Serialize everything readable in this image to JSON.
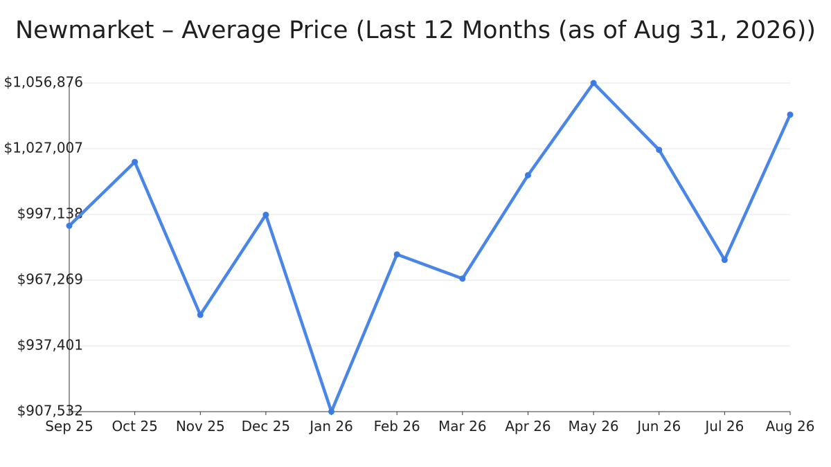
{
  "chart_data": {
    "type": "line",
    "title": "Newmarket – Average Price (Last 12 Months (as of Aug 31, 2026))",
    "xlabel": "",
    "ylabel": "",
    "categories": [
      "Sep 25",
      "Oct 25",
      "Nov 25",
      "Dec 25",
      "Jan 26",
      "Feb 26",
      "Mar 26",
      "Apr 26",
      "May 26",
      "Jun 26",
      "Jul 26",
      "Aug 26"
    ],
    "series": [
      {
        "values": [
          992000,
          1021000,
          951500,
          997000,
          907532,
          979000,
          968000,
          1015000,
          1056876,
          1026500,
          976500,
          1042500
        ]
      }
    ],
    "yticks": [
      907532,
      937401,
      967269,
      997138,
      1027007,
      1056876
    ],
    "ytick_labels": [
      "$907,532",
      "$937,401",
      "$967,269",
      "$997,138",
      "$1,027,007",
      "$1,056,876"
    ],
    "ylim": [
      907532,
      1056876
    ],
    "grid": true,
    "legend": "none",
    "line_color": "#4a86e8"
  }
}
